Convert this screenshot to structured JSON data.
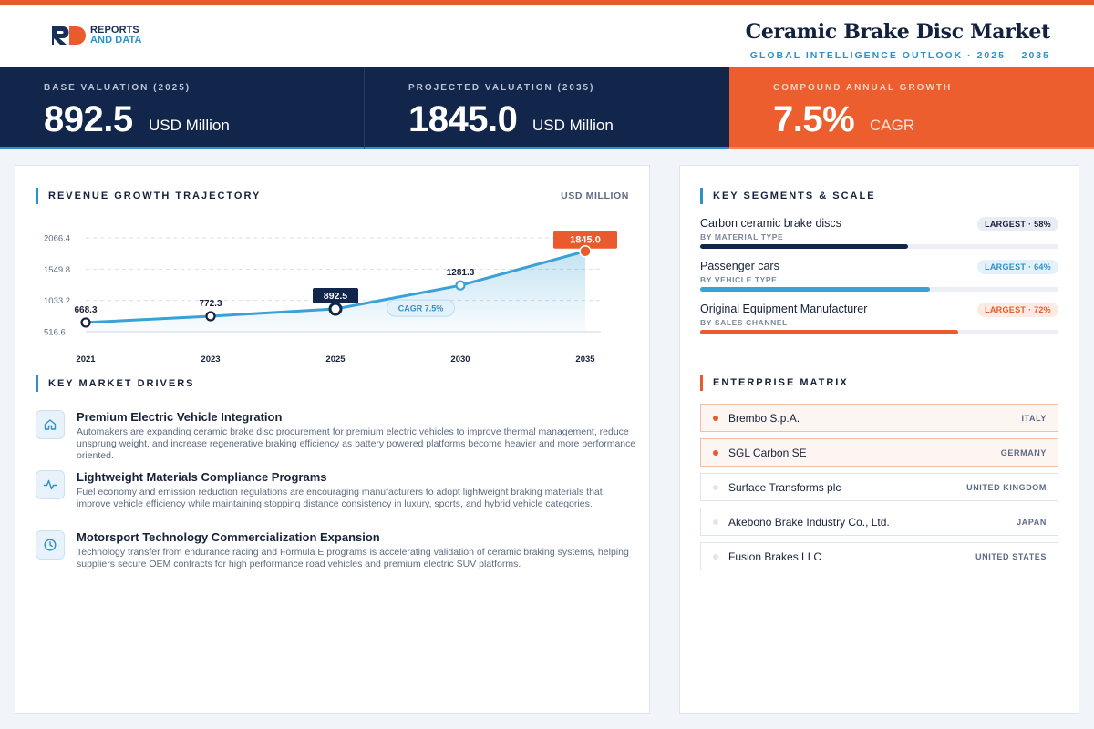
{
  "header": {
    "logo_line1": "REPORTS",
    "logo_line2": "AND DATA",
    "title": "Ceramic Brake Disc Market",
    "subtitle": "GLOBAL INTELLIGENCE OUTLOOK  ·  2025 – 2035"
  },
  "kpis": [
    {
      "label": "BASE VALUATION (2025)",
      "value": "892.5",
      "unit": "USD Million"
    },
    {
      "label": "PROJECTED VALUATION (2035)",
      "value": "1845.0",
      "unit": "USD Million"
    },
    {
      "label": "COMPOUND ANNUAL GROWTH",
      "value": "7.5%",
      "unit": "CAGR"
    }
  ],
  "trajectory": {
    "heading": "REVENUE GROWTH TRAJECTORY",
    "unit_label": "USD MILLION"
  },
  "chart_data": {
    "type": "area",
    "title": "REVENUE GROWTH TRAJECTORY",
    "ylabel": "USD MILLION",
    "x": [
      "2021",
      "2023",
      "2025",
      "2030",
      "2035"
    ],
    "values": [
      668.3,
      772.3,
      892.5,
      1281.3,
      1845.0
    ],
    "data_labels": [
      "668.3",
      "772.3",
      "892.5",
      "1281.3",
      "1845.0"
    ],
    "yticks": [
      516.6,
      1033.2,
      1549.8,
      2066.4
    ],
    "ytick_labels": [
      "516.6",
      "1033.2",
      "1549.8",
      "2066.4"
    ],
    "ylim": [
      516.6,
      2066.4
    ],
    "annotation": "CAGR 7.5%",
    "grid": true,
    "colors": {
      "line": "#3aa1d6",
      "highlight_base": "#12254a",
      "highlight_end": "#e95a2c"
    }
  },
  "drivers": {
    "heading": "KEY MARKET DRIVERS",
    "items": [
      {
        "icon": "home-icon",
        "title": "Premium Electric Vehicle Integration",
        "text": "Automakers are expanding ceramic brake disc procurement for premium electric vehicles to improve thermal management, reduce unsprung weight, and increase regenerative braking efficiency as battery powered platforms become heavier and more performance oriented."
      },
      {
        "icon": "pulse-icon",
        "title": "Lightweight Materials Compliance Programs",
        "text": "Fuel economy and emission reduction regulations are encouraging manufacturers to adopt lightweight braking materials that improve vehicle efficiency while maintaining stopping distance consistency in luxury, sports, and hybrid vehicle categories."
      },
      {
        "icon": "clock-icon",
        "title": "Motorsport Technology Commercialization Expansion",
        "text": "Technology transfer from endurance racing and Formula E programs is accelerating validation of ceramic braking systems, helping suppliers secure OEM contracts for high performance road vehicles and premium electric SUV platforms."
      }
    ]
  },
  "segments": {
    "heading": "KEY SEGMENTS & SCALE",
    "items": [
      {
        "title": "Carbon ceramic brake discs",
        "sub": "BY MATERIAL TYPE",
        "badge": "LARGEST · 58%",
        "share": 0.58,
        "color": "#12254a",
        "badge_bg": "#e9ecf2",
        "badge_fg": "#16213a"
      },
      {
        "title": "Passenger cars",
        "sub": "BY VEHICLE TYPE",
        "badge": "LARGEST · 64%",
        "share": 0.64,
        "color": "#3aa1d6",
        "badge_bg": "#e3f1fa",
        "badge_fg": "#2e90c8"
      },
      {
        "title": "Original Equipment Manufacturer",
        "sub": "BY SALES CHANNEL",
        "badge": "LARGEST · 72%",
        "share": 0.72,
        "color": "#e95a2c",
        "badge_bg": "#fdebe3",
        "badge_fg": "#e95a2c"
      }
    ]
  },
  "matrix": {
    "heading": "ENTERPRISE MATRIX",
    "items": [
      {
        "name": "Brembo S.p.A.",
        "country": "ITALY",
        "highlight": true
      },
      {
        "name": "SGL Carbon SE",
        "country": "GERMANY",
        "highlight": true
      },
      {
        "name": "Surface Transforms plc",
        "country": "UNITED KINGDOM",
        "highlight": false
      },
      {
        "name": "Akebono Brake Industry Co., Ltd.",
        "country": "JAPAN",
        "highlight": false
      },
      {
        "name": "Fusion Brakes LLC",
        "country": "UNITED STATES",
        "highlight": false
      }
    ]
  }
}
